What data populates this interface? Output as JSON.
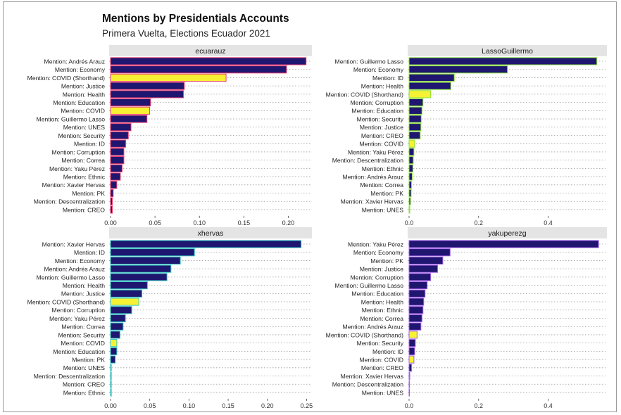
{
  "title": "Mentions by Presidentials Accounts",
  "subtitle": "Primera Vuelta, Elections Ecuador 2021",
  "colors": {
    "bar_fill": "#1f1670",
    "highlight_fill": "#f6f233",
    "strip_bg": "#e4e4e4",
    "grid": "#9c9c9c"
  },
  "chart_data": [
    {
      "type": "bar",
      "orientation": "horizontal",
      "facet": "ecuarauz",
      "xlim": [
        0,
        0.225
      ],
      "xticks": [
        "0.00",
        "0.05",
        "0.10",
        "0.15",
        "0.20"
      ],
      "tick_values": [
        0,
        0.05,
        0.1,
        0.15,
        0.2
      ],
      "bar_border": "#ea3b6d",
      "categories": [
        "Mention: Andrés Arauz",
        "Mention: Economy",
        "Mention: COVID (Shorthand)",
        "Mention: Justice",
        "Mention: Health",
        "Mention: Education",
        "Mention: COVID",
        "Mention: Guillermo Lasso",
        "Mention: UNES",
        "Mention: Security",
        "Mention: ID",
        "Mention: Corruption",
        "Mention: Correa",
        "Mention: Yaku Pérez",
        "Mention: Ethnic",
        "Mention: Xavier Hervas",
        "Mention: PK",
        "Mention: Descentralization",
        "Mention: CREO"
      ],
      "values": [
        0.22,
        0.198,
        0.13,
        0.083,
        0.082,
        0.045,
        0.044,
        0.041,
        0.023,
        0.02,
        0.017,
        0.015,
        0.015,
        0.013,
        0.011,
        0.007,
        0.003,
        0.002,
        0.002
      ],
      "highlight": [
        "Mention: COVID (Shorthand)",
        "Mention: COVID"
      ]
    },
    {
      "type": "bar",
      "orientation": "horizontal",
      "facet": "LassoGuillermo",
      "xlim": [
        0,
        0.565
      ],
      "xticks": [
        "0.0",
        "0.2",
        "0.4"
      ],
      "tick_values": [
        0,
        0.2,
        0.4
      ],
      "bar_border": "#8ae03a",
      "categories": [
        "Mention: Guillermo Lasso",
        "Mention: Economy",
        "Mention: ID",
        "Mention: Health",
        "Mention: COVID (Shorthand)",
        "Mention: Corruption",
        "Mention: Education",
        "Mention: Security",
        "Mention: Justice",
        "Mention: CREO",
        "Mention: COVID",
        "Mention: Yaku Pérez",
        "Mention: Descentralization",
        "Mention: Ethnic",
        "Mention: Andrés Arauz",
        "Mention: Correa",
        "Mention: PK",
        "Mention: Xavier Hervas",
        "Mention: UNES"
      ],
      "values": [
        0.54,
        0.283,
        0.13,
        0.12,
        0.062,
        0.04,
        0.037,
        0.035,
        0.034,
        0.032,
        0.016,
        0.014,
        0.012,
        0.011,
        0.009,
        0.007,
        0.006,
        0.004,
        0.002
      ],
      "highlight": [
        "Mention: COVID (Shorthand)",
        "Mention: COVID"
      ]
    },
    {
      "type": "bar",
      "orientation": "horizontal",
      "facet": "xhervas",
      "xlim": [
        0,
        0.255
      ],
      "xticks": [
        "0.00",
        "0.05",
        "0.10",
        "0.15",
        "0.20",
        "0.25"
      ],
      "tick_values": [
        0,
        0.05,
        0.1,
        0.15,
        0.2,
        0.25
      ],
      "bar_border": "#33c5c0",
      "categories": [
        "Mention: Xavier Hervas",
        "Mention: ID",
        "Mention: Economy",
        "Mention: Andrés Arauz",
        "Mention: Guillermo Lasso",
        "Mention: Health",
        "Mention: Justice",
        "Mention: COVID (Shorthand)",
        "Mention: Corruption",
        "Mention: Yaku Pérez",
        "Mention: Correa",
        "Mention: Security",
        "Mention: COVID",
        "Mention: Education",
        "Mention: PK",
        "Mention: UNES",
        "Mention: Descentralization",
        "Mention: CREO",
        "Mention: Ethnic"
      ],
      "values": [
        0.243,
        0.107,
        0.089,
        0.077,
        0.072,
        0.047,
        0.04,
        0.036,
        0.027,
        0.019,
        0.016,
        0.012,
        0.008,
        0.008,
        0.006,
        0.001,
        0.001,
        0.001,
        0.001
      ],
      "highlight": [
        "Mention: COVID (Shorthand)",
        "Mention: COVID"
      ]
    },
    {
      "type": "bar",
      "orientation": "horizontal",
      "facet": "yakuperezg",
      "xlim": [
        0,
        0.565
      ],
      "xticks": [
        "0.0",
        "0.2",
        "0.4"
      ],
      "tick_values": [
        0,
        0.2,
        0.4
      ],
      "bar_border": "#a45ee8",
      "categories": [
        "Mention: Yaku Pérez",
        "Mention: Economy",
        "Mention: PK",
        "Mention: Justice",
        "Mention: Corruption",
        "Mention: Guillermo Lasso",
        "Mention: Education",
        "Mention: Health",
        "Mention: Ethnic",
        "Mention: Correa",
        "Mention: Andrés Arauz",
        "Mention: COVID (Shorthand)",
        "Mention: Security",
        "Mention: ID",
        "Mention: COVID",
        "Mention: CREO",
        "Mention: Xavier Hervas",
        "Mention: Descentralization",
        "Mention: UNES"
      ],
      "values": [
        0.545,
        0.118,
        0.097,
        0.082,
        0.062,
        0.052,
        0.046,
        0.042,
        0.04,
        0.037,
        0.034,
        0.023,
        0.018,
        0.016,
        0.014,
        0.007,
        0.002,
        0.001,
        0.001
      ],
      "highlight": [
        "Mention: COVID (Shorthand)",
        "Mention: COVID"
      ]
    }
  ]
}
